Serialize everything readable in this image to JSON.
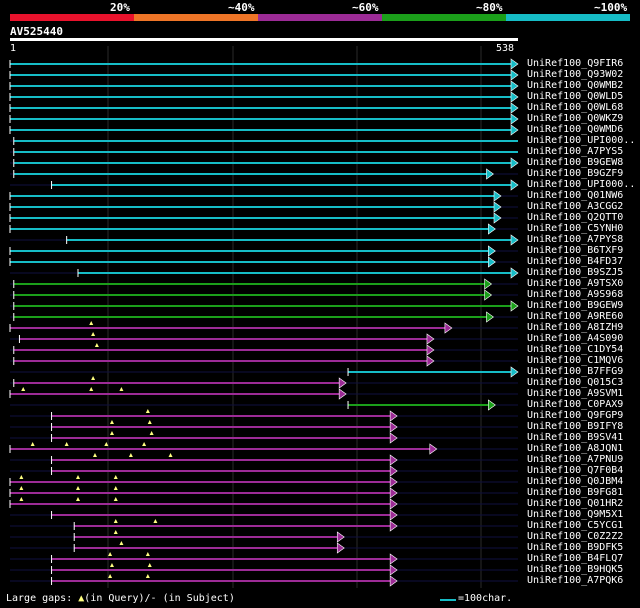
{
  "scale": {
    "labels": [
      "20%",
      "~40%",
      "~60%",
      "~80%",
      "~100%"
    ],
    "colors": [
      "#e9122c",
      "#ee7527",
      "#9c2b96",
      "#1b9f1a",
      "#16bcc6"
    ]
  },
  "query": {
    "name": "AV525440",
    "start": "1",
    "end": "538",
    "length": 538
  },
  "hits": [
    {
      "label": "UniRef100_Q9FIR6",
      "color": "#16bcc6",
      "qs": 0,
      "qe": 538,
      "arrow": true,
      "gaps": []
    },
    {
      "label": "UniRef100_Q93W02",
      "color": "#16bcc6",
      "qs": 0,
      "qe": 538,
      "arrow": true,
      "gaps": []
    },
    {
      "label": "UniRef100_Q0WMB2",
      "color": "#16bcc6",
      "qs": 0,
      "qe": 538,
      "arrow": true,
      "gaps": []
    },
    {
      "label": "UniRef100_Q0WLD5",
      "color": "#16bcc6",
      "qs": 0,
      "qe": 538,
      "arrow": true,
      "gaps": []
    },
    {
      "label": "UniRef100_Q0WL68",
      "color": "#16bcc6",
      "qs": 0,
      "qe": 538,
      "arrow": true,
      "gaps": []
    },
    {
      "label": "UniRef100_Q0WKZ9",
      "color": "#16bcc6",
      "qs": 0,
      "qe": 538,
      "arrow": true,
      "gaps": []
    },
    {
      "label": "UniRef100_Q0WMD6",
      "color": "#16bcc6",
      "qs": 0,
      "qe": 538,
      "arrow": true,
      "gaps": []
    },
    {
      "label": "UniRef100_UPI000..",
      "color": "#16bcc6",
      "qs": 4,
      "qe": 538,
      "arrow": false,
      "gaps": []
    },
    {
      "label": "UniRef100_A7PYS5",
      "color": "#16bcc6",
      "qs": 4,
      "qe": 538,
      "arrow": false,
      "gaps": []
    },
    {
      "label": "UniRef100_B9GEW8",
      "color": "#16bcc6",
      "qs": 4,
      "qe": 538,
      "arrow": true,
      "gaps": []
    },
    {
      "label": "UniRef100_B9GZF9",
      "color": "#16bcc6",
      "qs": 4,
      "qe": 512,
      "arrow": true,
      "gaps": []
    },
    {
      "label": "UniRef100_UPI000..",
      "color": "#16bcc6",
      "qs": 44,
      "qe": 538,
      "arrow": true,
      "gaps": []
    },
    {
      "label": "UniRef100_Q01NW6",
      "color": "#16bcc6",
      "qs": 0,
      "qe": 520,
      "arrow": true,
      "gaps": []
    },
    {
      "label": "UniRef100_A3CGG2",
      "color": "#16bcc6",
      "qs": 0,
      "qe": 520,
      "arrow": true,
      "gaps": []
    },
    {
      "label": "UniRef100_Q2QTT0",
      "color": "#16bcc6",
      "qs": 0,
      "qe": 520,
      "arrow": true,
      "gaps": []
    },
    {
      "label": "UniRef100_C5YNH0",
      "color": "#16bcc6",
      "qs": 0,
      "qe": 514,
      "arrow": true,
      "gaps": []
    },
    {
      "label": "UniRef100_A7PYS8",
      "color": "#16bcc6",
      "qs": 60,
      "qe": 538,
      "arrow": true,
      "gaps": []
    },
    {
      "label": "UniRef100_B6TXF9",
      "color": "#16bcc6",
      "qs": 0,
      "qe": 514,
      "arrow": true,
      "gaps": []
    },
    {
      "label": "UniRef100_B4FD37",
      "color": "#16bcc6",
      "qs": 0,
      "qe": 514,
      "arrow": true,
      "gaps": []
    },
    {
      "label": "UniRef100_B9SZJ5",
      "color": "#16bcc6",
      "qs": 72,
      "qe": 538,
      "arrow": true,
      "gaps": []
    },
    {
      "label": "UniRef100_A9TSX0",
      "color": "#1b9f1a",
      "qs": 4,
      "qe": 510,
      "arrow": true,
      "gaps": []
    },
    {
      "label": "UniRef100_A9S968",
      "color": "#1b9f1a",
      "qs": 4,
      "qe": 510,
      "arrow": true,
      "gaps": []
    },
    {
      "label": "UniRef100_B9GEW9",
      "color": "#1b9f1a",
      "qs": 4,
      "qe": 538,
      "arrow": true,
      "gaps": []
    },
    {
      "label": "UniRef100_A9RE60",
      "color": "#1b9f1a",
      "qs": 4,
      "qe": 512,
      "arrow": true,
      "gaps": []
    },
    {
      "label": "UniRef100_A8IZH9",
      "color": "#9c2b96",
      "qs": 0,
      "qe": 468,
      "arrow": true,
      "gaps": [
        86
      ]
    },
    {
      "label": "UniRef100_A4S090",
      "color": "#9c2b96",
      "qs": 10,
      "qe": 449,
      "arrow": true,
      "gaps": [
        88
      ]
    },
    {
      "label": "UniRef100_C1DY54",
      "color": "#9c2b96",
      "qs": 4,
      "qe": 449,
      "arrow": true,
      "gaps": [
        92
      ]
    },
    {
      "label": "UniRef100_C1MQV6",
      "color": "#9c2b96",
      "qs": 4,
      "qe": 449,
      "arrow": true,
      "gaps": []
    },
    {
      "label": "UniRef100_B7FFG9",
      "color": "#16bcc6",
      "qs": 358,
      "qe": 538,
      "arrow": true,
      "gaps": []
    },
    {
      "label": "UniRef100_Q015C3",
      "color": "#9c2b96",
      "qs": 4,
      "qe": 356,
      "arrow": true,
      "gaps": [
        88
      ]
    },
    {
      "label": "UniRef100_A9SVM1",
      "color": "#9c2b96",
      "qs": 0,
      "qe": 356,
      "arrow": true,
      "gaps": [
        14,
        86,
        118
      ]
    },
    {
      "label": "UniRef100_C0PAX9",
      "color": "#1b9f1a",
      "qs": 358,
      "qe": 514,
      "arrow": true,
      "gaps": []
    },
    {
      "label": "UniRef100_Q9FGP9",
      "color": "#9c2b96",
      "qs": 44,
      "qe": 410,
      "arrow": true,
      "gaps": [
        146
      ]
    },
    {
      "label": "UniRef100_B9IFY8",
      "color": "#9c2b96",
      "qs": 44,
      "qe": 410,
      "arrow": true,
      "gaps": [
        108,
        148
      ]
    },
    {
      "label": "UniRef100_B9SV41",
      "color": "#9c2b96",
      "qs": 44,
      "qe": 410,
      "arrow": true,
      "gaps": [
        108,
        150
      ]
    },
    {
      "label": "UniRef100_A8JQN1",
      "color": "#9c2b96",
      "qs": 0,
      "qe": 452,
      "arrow": true,
      "gaps": [
        24,
        60,
        102,
        142
      ]
    },
    {
      "label": "UniRef100_A7PNU9",
      "color": "#9c2b96",
      "qs": 44,
      "qe": 410,
      "arrow": true,
      "gaps": [
        90,
        128,
        170
      ]
    },
    {
      "label": "UniRef100_Q7F0B4",
      "color": "#9c2b96",
      "qs": 44,
      "qe": 410,
      "arrow": true,
      "gaps": []
    },
    {
      "label": "UniRef100_Q0JBM4",
      "color": "#9c2b96",
      "qs": 0,
      "qe": 410,
      "arrow": true,
      "gaps": [
        12,
        72,
        112
      ]
    },
    {
      "label": "UniRef100_B9FG81",
      "color": "#9c2b96",
      "qs": 0,
      "qe": 410,
      "arrow": true,
      "gaps": [
        12,
        72,
        112
      ]
    },
    {
      "label": "UniRef100_Q01HR2",
      "color": "#9c2b96",
      "qs": 0,
      "qe": 410,
      "arrow": true,
      "gaps": [
        12,
        72,
        112
      ]
    },
    {
      "label": "UniRef100_Q9M5X1",
      "color": "#9c2b96",
      "qs": 44,
      "qe": 410,
      "arrow": true,
      "gaps": []
    },
    {
      "label": "UniRef100_C5YCG1",
      "color": "#9c2b96",
      "qs": 68,
      "qe": 410,
      "arrow": true,
      "gaps": [
        112,
        154
      ]
    },
    {
      "label": "UniRef100_C0Z2Z2",
      "color": "#9c2b96",
      "qs": 68,
      "qe": 354,
      "arrow": true,
      "gaps": [
        112
      ]
    },
    {
      "label": "UniRef100_B9DFK5",
      "color": "#9c2b96",
      "qs": 68,
      "qe": 354,
      "arrow": true,
      "gaps": [
        118
      ]
    },
    {
      "label": "UniRef100_B4FLQ7",
      "color": "#9c2b96",
      "qs": 44,
      "qe": 410,
      "arrow": true,
      "gaps": [
        106,
        146
      ]
    },
    {
      "label": "UniRef100_B9HQK5",
      "color": "#9c2b96",
      "qs": 44,
      "qe": 410,
      "arrow": true,
      "gaps": [
        108,
        148
      ]
    },
    {
      "label": "UniRef100_A7PQK6",
      "color": "#9c2b96",
      "qs": 44,
      "qe": 410,
      "arrow": true,
      "gaps": [
        106,
        146
      ]
    }
  ],
  "footer": {
    "gaps_label": "Large gaps:",
    "gaps_query": "(in Query)/",
    "gaps_subject": "(in Subject)",
    "gap_dash": "-",
    "scale_text": "=100char."
  }
}
